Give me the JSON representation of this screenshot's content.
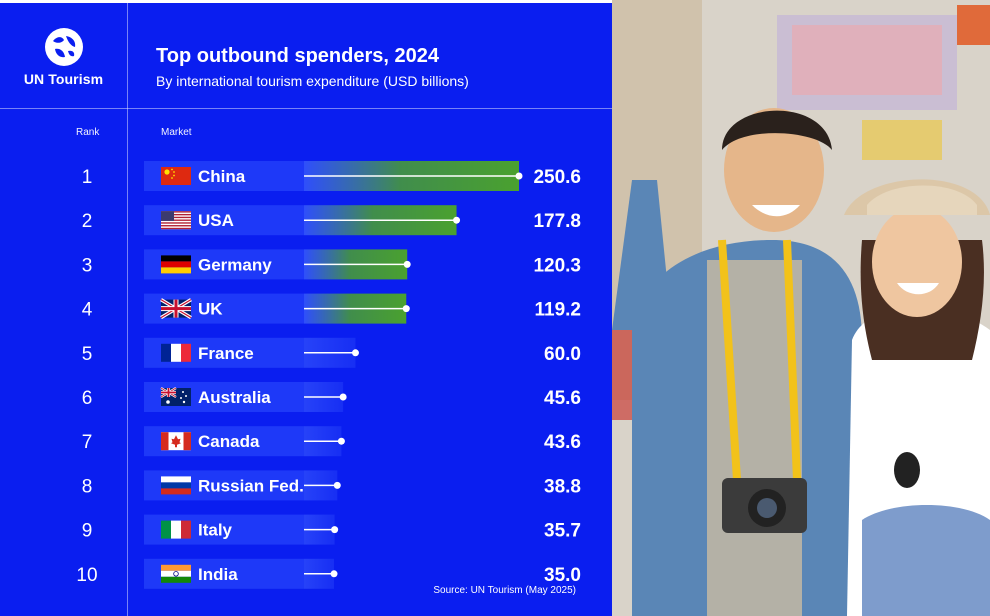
{
  "brand": {
    "logo_text": "UN Tourism",
    "panel_color": "#0a1ef0",
    "bar_color": "#4aa12f",
    "logo_icon": "un-tourism-globe-icon"
  },
  "header": {
    "title": "Top outbound spenders, 2024",
    "subtitle": "By international tourism expenditure (USD billions)"
  },
  "columns": {
    "rank": "Rank",
    "market": "Market"
  },
  "chart_data": {
    "type": "bar",
    "orientation": "horizontal",
    "title": "Top outbound spenders, 2024",
    "subtitle": "By international tourism expenditure (USD billions)",
    "ranks": [
      "1",
      "2",
      "3",
      "4",
      "5",
      "6",
      "7",
      "8",
      "9",
      "10"
    ],
    "categories": [
      "China",
      "USA",
      "Germany",
      "UK",
      "France",
      "Australia",
      "Canada",
      "Russian Fed.",
      "Italy",
      "India"
    ],
    "values": [
      250.6,
      177.8,
      120.3,
      119.2,
      60.0,
      45.6,
      43.6,
      38.8,
      35.7,
      35.0
    ],
    "value_labels": [
      "250.6",
      "177.8",
      "120.3",
      "119.2",
      "60.0",
      "45.6",
      "43.6",
      "38.8",
      "35.7",
      "35.0"
    ],
    "flags": [
      "china-flag-icon",
      "usa-flag-icon",
      "germany-flag-icon",
      "uk-flag-icon",
      "france-flag-icon",
      "australia-flag-icon",
      "canada-flag-icon",
      "russia-flag-icon",
      "italy-flag-icon",
      "india-flag-icon"
    ],
    "xlim": [
      0,
      250.6
    ],
    "green_highlight_ranks": [
      "1",
      "2",
      "3",
      "4"
    ],
    "grid": false,
    "legend": "none"
  },
  "footer": {
    "source": "Source: UN Tourism (May 2025)"
  },
  "photo": {
    "icon": "tourist-couple-photo"
  }
}
